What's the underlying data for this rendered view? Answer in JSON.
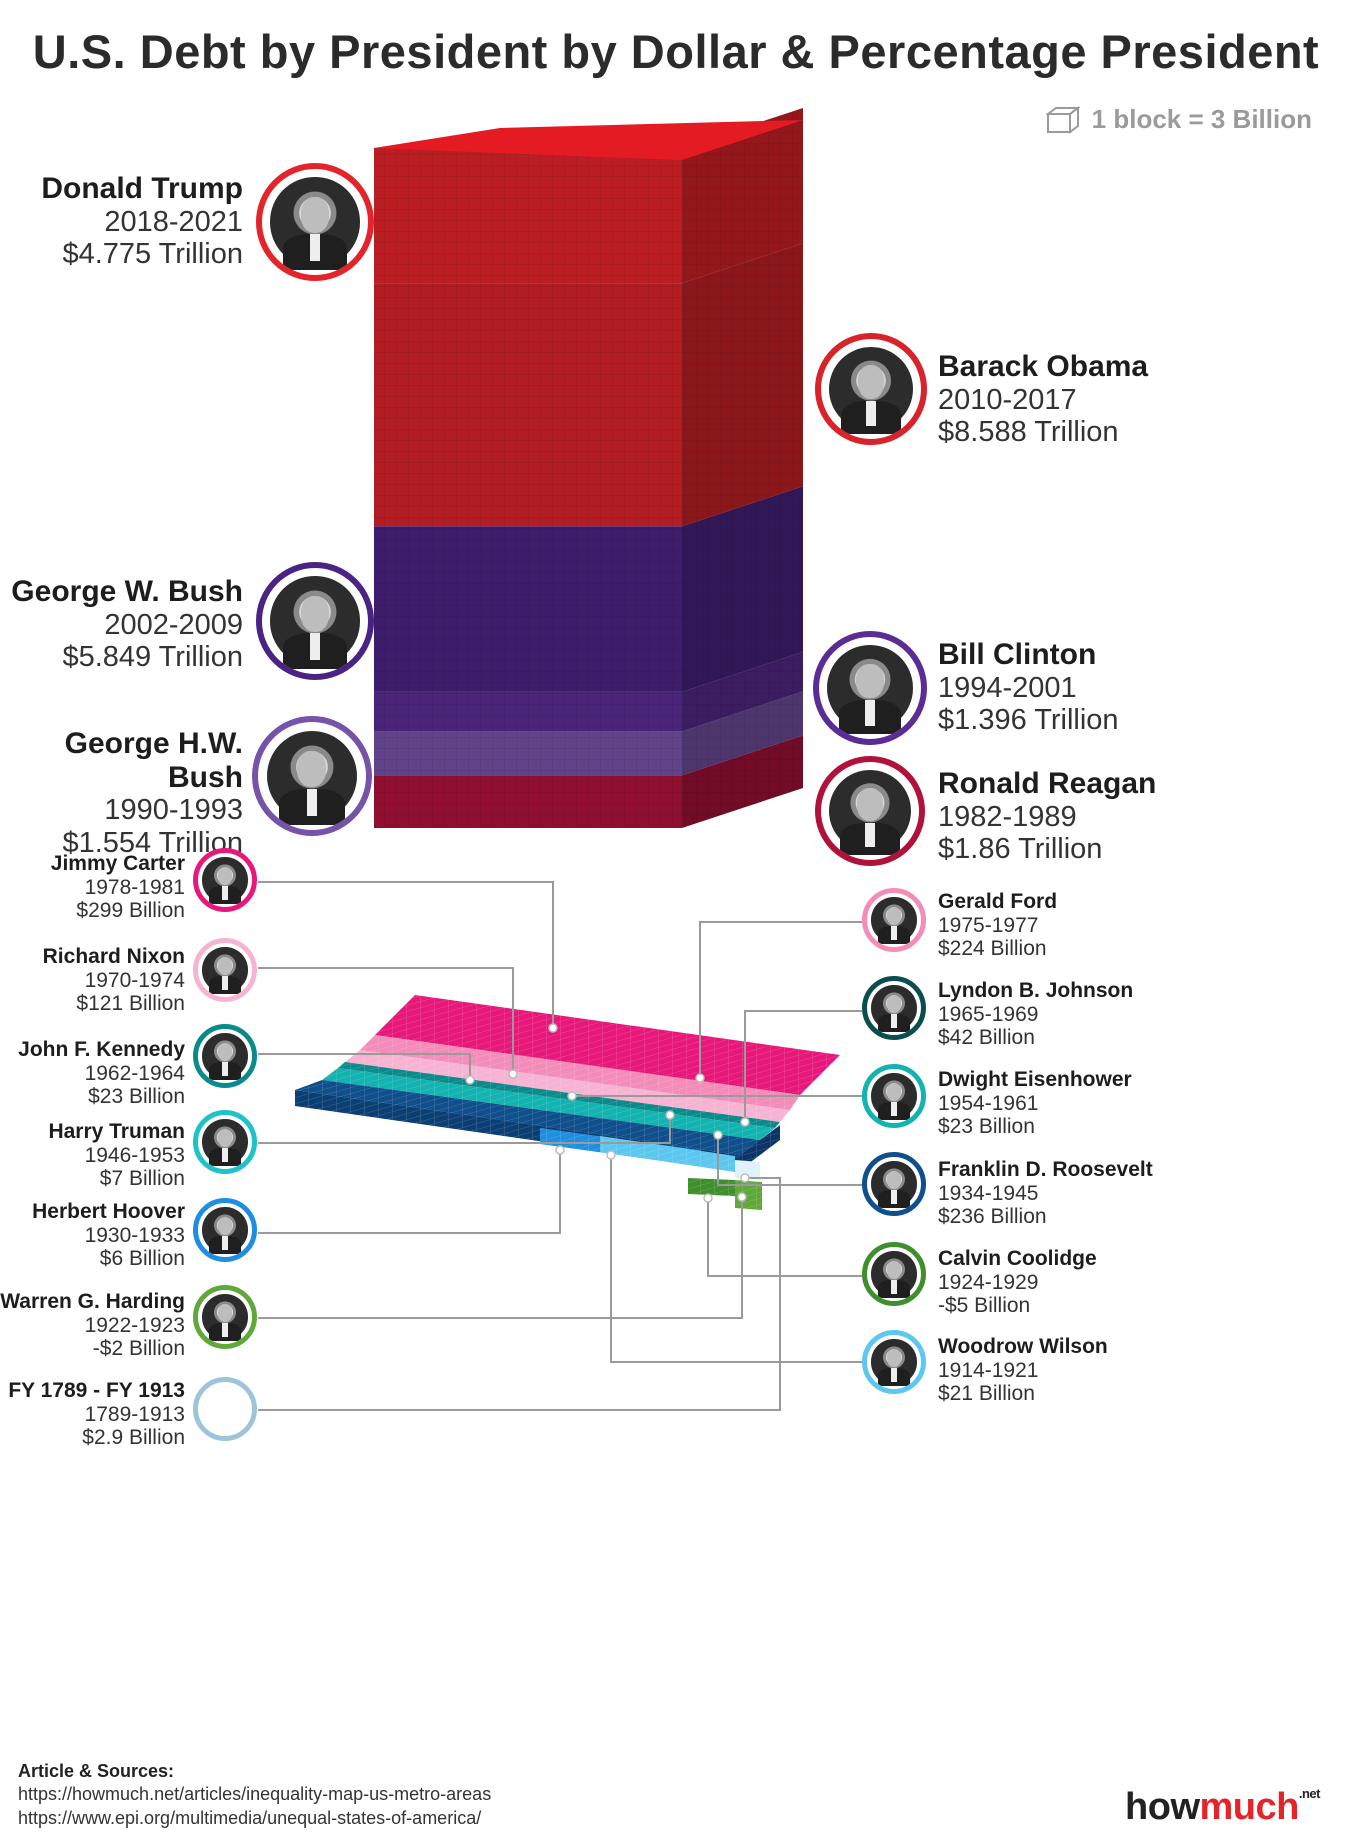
{
  "title": "U.S. Debt by President by Dollar & Percentage President",
  "legend": {
    "block_label": "1 block = 3 Billion",
    "icon": "cube-icon"
  },
  "presidents": [
    {
      "key": "trump",
      "name": "Donald Trump",
      "years": "2018-2021",
      "amount": "$4.775 Trillion",
      "value_billion": 4775,
      "color": "#e3242b"
    },
    {
      "key": "obama",
      "name": "Barack Obama",
      "years": "2010-2017",
      "amount": "$8.588 Trillion",
      "value_billion": 8588,
      "color": "#d8232a"
    },
    {
      "key": "gwbush",
      "name": "George W. Bush",
      "years": "2002-2009",
      "amount": "$5.849 Trillion",
      "value_billion": 5849,
      "color": "#4b2383"
    },
    {
      "key": "clinton",
      "name": "Bill Clinton",
      "years": "1994-2001",
      "amount": "$1.396 Trillion",
      "value_billion": 1396,
      "color": "#5a2c94"
    },
    {
      "key": "ghwbush",
      "name": "George H.W. Bush",
      "years": "1990-1993",
      "amount": "$1.554 Trillion",
      "value_billion": 1554,
      "color": "#7652a8"
    },
    {
      "key": "reagan",
      "name": "Ronald Reagan",
      "years": "1982-1989",
      "amount": "$1.86 Trillion",
      "value_billion": 1860,
      "color": "#b0123b"
    },
    {
      "key": "carter",
      "name": "Jimmy Carter",
      "years": "1978-1981",
      "amount": "$299 Billion",
      "value_billion": 299,
      "color": "#e8187a"
    },
    {
      "key": "ford",
      "name": "Gerald Ford",
      "years": "1975-1977",
      "amount": "$224 Billion",
      "value_billion": 224,
      "color": "#f48cba"
    },
    {
      "key": "nixon",
      "name": "Richard Nixon",
      "years": "1970-1974",
      "amount": "$121 Billion",
      "value_billion": 121,
      "color": "#f7b3d2"
    },
    {
      "key": "lbj",
      "name": "Lyndon B. Johnson",
      "years": "1965-1969",
      "amount": "$42 Billion",
      "value_billion": 42,
      "color": "#0a4e50"
    },
    {
      "key": "jfk",
      "name": "John F. Kennedy",
      "years": "1962-1964",
      "amount": "$23 Billion",
      "value_billion": 23,
      "color": "#0a8a8a"
    },
    {
      "key": "ike",
      "name": "Dwight Eisenhower",
      "years": "1954-1961",
      "amount": "$23 Billion",
      "value_billion": 23,
      "color": "#12b3b0"
    },
    {
      "key": "truman",
      "name": "Harry Truman",
      "years": "1946-1953",
      "amount": "$7 Billion",
      "value_billion": 7,
      "color": "#1fc2c9"
    },
    {
      "key": "fdr",
      "name": "Franklin D. Roosevelt",
      "years": "1934-1945",
      "amount": "$236 Billion",
      "value_billion": 236,
      "color": "#0f4f8c"
    },
    {
      "key": "hoover",
      "name": "Herbert Hoover",
      "years": "1930-1933",
      "amount": "$6 Billion",
      "value_billion": 6,
      "color": "#1e8fe0"
    },
    {
      "key": "coolidge",
      "name": "Calvin Coolidge",
      "years": "1924-1929",
      "amount": "-$5 Billion",
      "value_billion": -5,
      "color": "#3f8f2c"
    },
    {
      "key": "harding",
      "name": "Warren G. Harding",
      "years": "1922-1923",
      "amount": "-$2 Billion",
      "value_billion": -2,
      "color": "#5fa83a"
    },
    {
      "key": "wilson",
      "name": "Woodrow Wilson",
      "years": "1914-1921",
      "amount": "$21 Billion",
      "value_billion": 21,
      "color": "#5cc8f0"
    },
    {
      "key": "pre1913",
      "name": "FY 1789 - FY 1913",
      "years": "1789-1913",
      "amount": "$2.9 Billion",
      "value_billion": 2.9,
      "color": "#9fc3da"
    }
  ],
  "chart_data": {
    "type": "bar",
    "categories": [
      "FY 1789 - FY 1913",
      "Woodrow Wilson",
      "Warren G. Harding",
      "Calvin Coolidge",
      "Herbert Hoover",
      "Franklin D. Roosevelt",
      "Harry Truman",
      "Dwight Eisenhower",
      "John F. Kennedy",
      "Lyndon B. Johnson",
      "Richard Nixon",
      "Gerald Ford",
      "Jimmy Carter",
      "Ronald Reagan",
      "George H.W. Bush",
      "Bill Clinton",
      "George W. Bush",
      "Barack Obama",
      "Donald Trump"
    ],
    "values": [
      2.9,
      21,
      -2,
      -5,
      6,
      236,
      7,
      23,
      23,
      42,
      121,
      224,
      299,
      1860,
      1554,
      1396,
      5849,
      8588,
      4775
    ],
    "unit_note": "1 block = 3 Billion"
  },
  "sources": {
    "heading": "Article & Sources:",
    "links": [
      "https://howmuch.net/articles/inequality-map-us-metro-areas",
      "https://www.epi.org/multimedia/unequal-states-of-america/"
    ]
  },
  "logo": {
    "part1": "how",
    "part2": "much",
    "suffix": ".net"
  }
}
